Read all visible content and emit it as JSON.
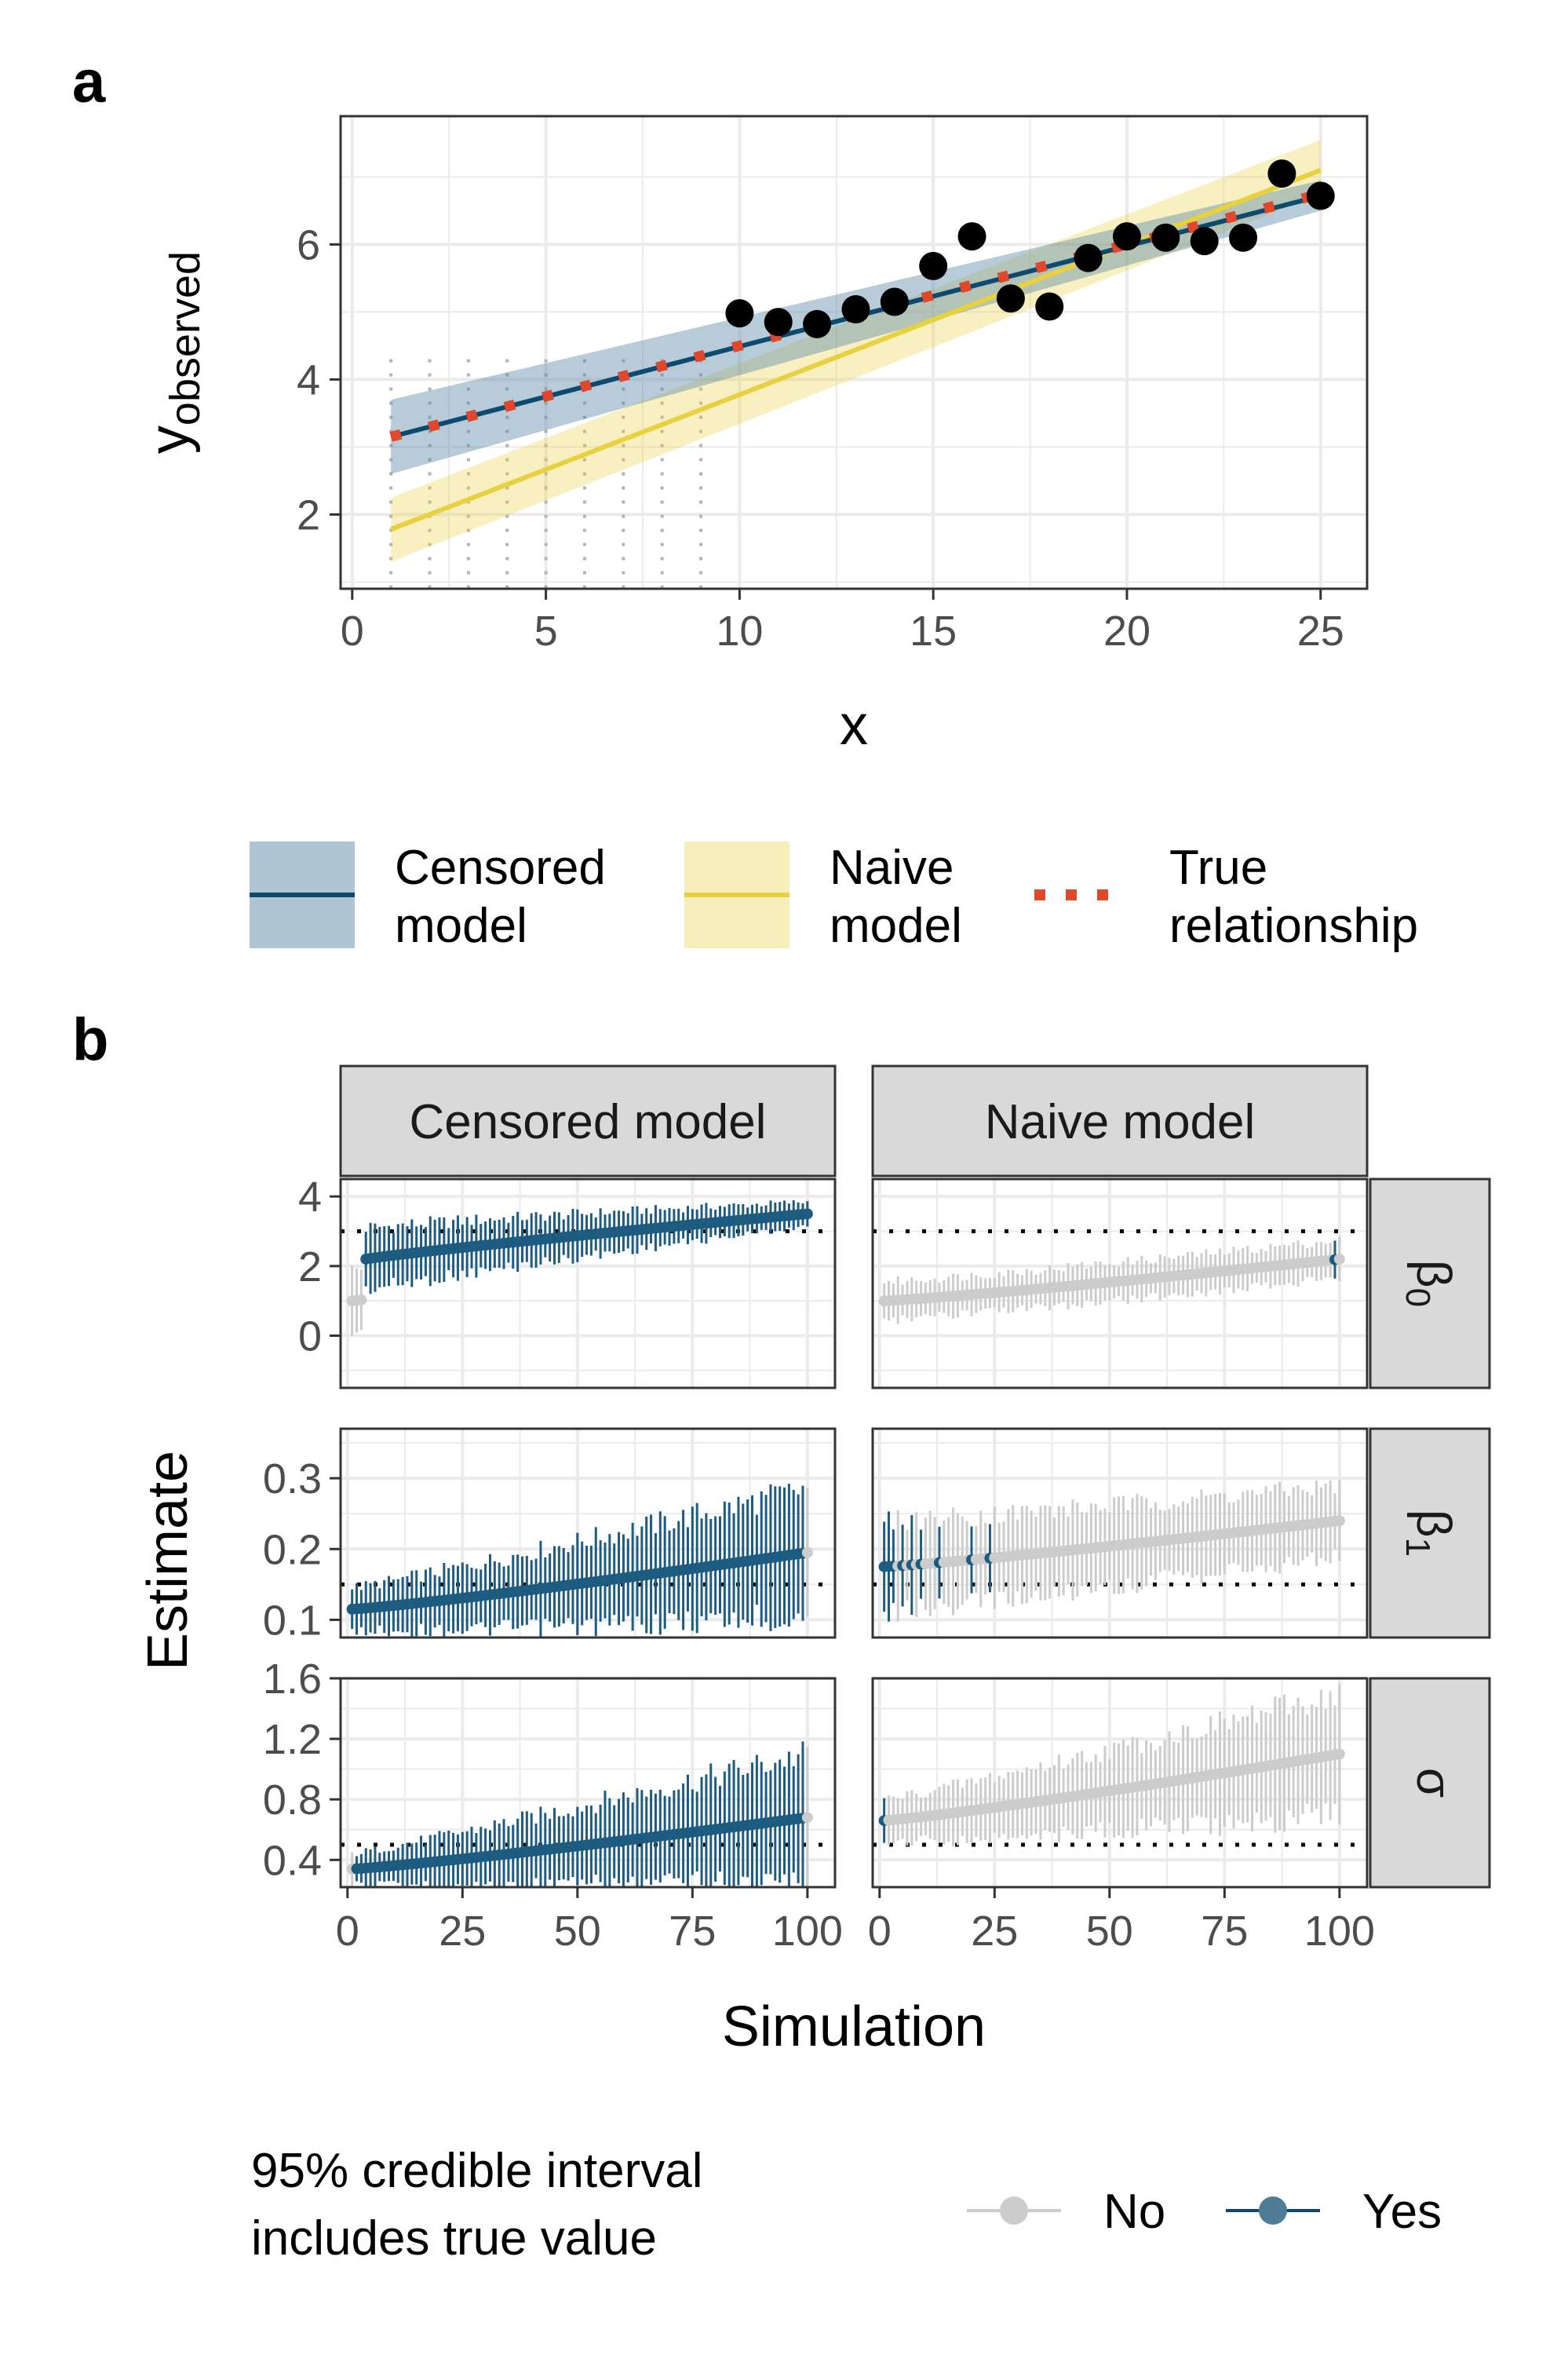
{
  "panel_labels": {
    "a": "a",
    "b": "b"
  },
  "colors": {
    "censored": "#0d4a6e",
    "censored_band": "#aec5d3",
    "naive": "#e8d13f",
    "naive_band": "#f7efbc",
    "true_line": "#e0472b",
    "no": "#cccccc",
    "yes": "#1d5b80",
    "grid": "#ebebeb",
    "frame": "#333333",
    "strip_fill": "#d9d9d9"
  },
  "chart_data": [
    {
      "type": "scatter",
      "id": "panel-a",
      "xlabel": "x",
      "ylabel_main": "y",
      "ylabel_sub": "observed",
      "xlim": [
        -0.3,
        26.2
      ],
      "ylim": [
        0.9,
        7.9
      ],
      "x_ticks": [
        0,
        5,
        10,
        15,
        20,
        25
      ],
      "y_ticks": [
        2,
        4,
        6
      ],
      "grid": true,
      "points": {
        "x": [
          10,
          11,
          12,
          13,
          14,
          15,
          16,
          17,
          18,
          19,
          20,
          21,
          22,
          23,
          24,
          25
        ],
        "y": [
          4.98,
          4.85,
          4.82,
          5.04,
          5.15,
          5.68,
          6.12,
          5.2,
          5.08,
          5.8,
          6.12,
          6.1,
          6.05,
          6.1,
          7.05,
          6.72
        ]
      },
      "censored_points": {
        "x": [
          1,
          2,
          3,
          4,
          5,
          6,
          7,
          8,
          9
        ],
        "upper_limit": 4.3,
        "lower_limit": 0.9
      },
      "series": [
        {
          "name": "Censored model",
          "type": "ribbon-line",
          "x": [
            1,
            25
          ],
          "y": [
            3.15,
            6.72
          ],
          "lower": [
            2.6,
            6.5
          ],
          "upper": [
            3.7,
            6.95
          ]
        },
        {
          "name": "Naive model",
          "type": "ribbon-line",
          "x": [
            1,
            25
          ],
          "y": [
            1.78,
            7.1
          ],
          "lower": [
            1.3,
            6.75
          ],
          "upper": [
            2.25,
            7.55
          ]
        },
        {
          "name": "True relationship",
          "type": "dotted-line",
          "x": [
            1,
            25
          ],
          "y": [
            3.15,
            6.75
          ]
        }
      ],
      "legend": {
        "position": "bottom",
        "items": [
          {
            "line1": "Censored",
            "line2": "model"
          },
          {
            "line1": "Naive",
            "line2": "model"
          },
          {
            "line1": "True",
            "line2": "relationship"
          }
        ]
      }
    },
    {
      "type": "scatter",
      "id": "panel-b",
      "xlabel": "Simulation",
      "ylabel": "Estimate",
      "n_simulations": 100,
      "x_ticks": [
        0,
        25,
        50,
        75,
        100
      ],
      "facet_columns": [
        "Censored model",
        "Naive model"
      ],
      "facet_rows": [
        {
          "label": "β",
          "sub": "0",
          "ylim": [
            -1.5,
            4.5
          ],
          "y_ticks": [
            "0",
            "2",
            "4"
          ],
          "y_tick_values": [
            0,
            2,
            4
          ],
          "true_value": 3.0
        },
        {
          "label": "β",
          "sub": "1",
          "ylim": [
            0.075,
            0.37
          ],
          "y_ticks": [
            "0.1",
            "0.2",
            "0.3"
          ],
          "y_tick_values": [
            0.1,
            0.2,
            0.3
          ],
          "true_value": 0.15
        },
        {
          "label": "σ",
          "sub": "",
          "ylim": [
            0.22,
            1.6
          ],
          "y_ticks": [
            "0.4",
            "0.8",
            "1.2",
            "1.6"
          ],
          "y_tick_values": [
            0.4,
            0.8,
            1.2,
            1.6
          ],
          "true_value": 0.5
        }
      ],
      "estimate_ranges": {
        "censored": [
          {
            "start": 1.0,
            "end": 3.5,
            "half_width_start": 0.9,
            "half_width_end": 0.35,
            "no_indices": [
              1,
              2,
              3
            ]
          },
          {
            "start": 0.115,
            "end": 0.195,
            "half_width_start": 0.03,
            "half_width_end": 0.09,
            "no_indices": [
              100
            ]
          },
          {
            "start": 0.34,
            "end": 0.68,
            "half_width_start": 0.1,
            "half_width_end": 0.42,
            "no_indices": [
              1,
              100
            ]
          }
        ],
        "naive": [
          {
            "start": 1.0,
            "end": 2.2,
            "half_width_start": 0.55,
            "half_width_end": 0.55,
            "yes_indices": [
              99
            ]
          },
          {
            "start": 0.175,
            "end": 0.24,
            "half_width_start": 0.065,
            "half_width_end": 0.05,
            "yes_indices": [
              1,
              2,
              3,
              5,
              7,
              9,
              13,
              20,
              24
            ]
          },
          {
            "start": 0.66,
            "end": 1.1,
            "half_width_start": 0.14,
            "half_width_end": 0.4,
            "yes_indices": [
              1
            ]
          }
        ]
      },
      "legend": {
        "title_line1": "95% credible interval",
        "title_line2": "includes true value",
        "items": [
          "No",
          "Yes"
        ]
      }
    }
  ]
}
